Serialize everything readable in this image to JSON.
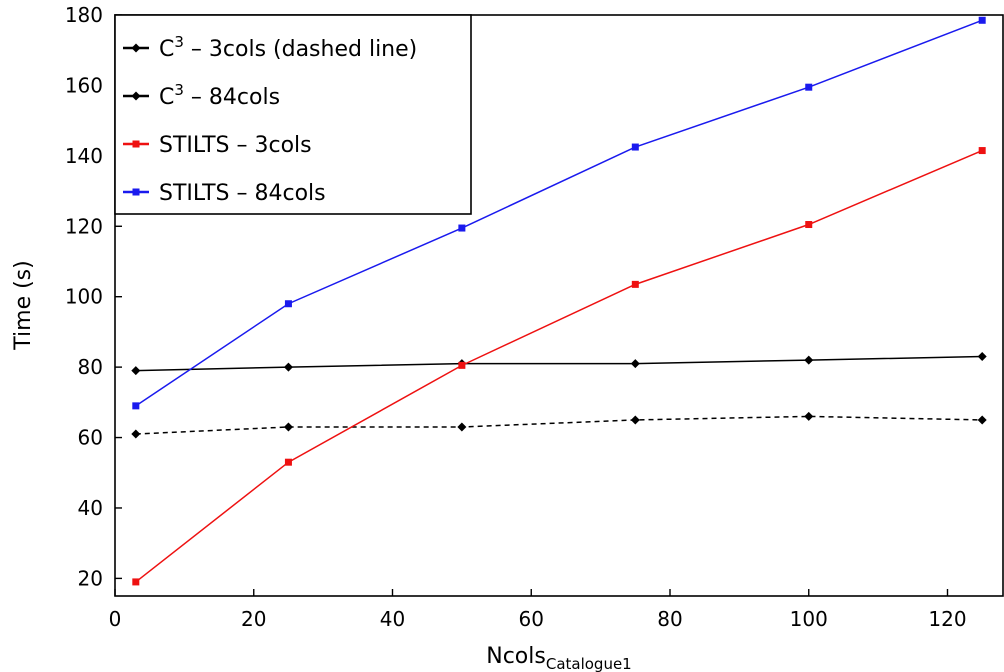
{
  "chart_data": {
    "type": "line",
    "xlabel": "Ncols",
    "xlabel_sub": "Catalogue1",
    "ylabel": "Time (s)",
    "xlim": [
      0,
      128
    ],
    "ylim": [
      15,
      180
    ],
    "xticks": [
      0,
      20,
      40,
      60,
      80,
      100,
      120
    ],
    "yticks": [
      20,
      40,
      60,
      80,
      100,
      120,
      140,
      160,
      180
    ],
    "grid": false,
    "legend_position": "top-left",
    "series": [
      {
        "name": "C³ – 3cols (dashed line)",
        "legend_base": "C",
        "legend_sup": "3",
        "legend_rest": " – 3cols (dashed line)",
        "color": "#000000",
        "dashed": true,
        "marker": "diamond",
        "x": [
          3,
          25,
          50,
          75,
          100,
          125
        ],
        "y": [
          61,
          63,
          63,
          65,
          66,
          65
        ]
      },
      {
        "name": "C³ – 84cols",
        "legend_base": "C",
        "legend_sup": "3",
        "legend_rest": " – 84cols",
        "color": "#000000",
        "dashed": false,
        "marker": "diamond",
        "x": [
          3,
          25,
          50,
          75,
          100,
          125
        ],
        "y": [
          79,
          80,
          81,
          81,
          82,
          83
        ]
      },
      {
        "name": "STILTS – 3cols",
        "legend_base": "STILTS – 3cols",
        "legend_sup": "",
        "legend_rest": "",
        "color": "#ee1111",
        "dashed": false,
        "marker": "square",
        "x": [
          3,
          25,
          50,
          75,
          100,
          125
        ],
        "y": [
          19,
          53,
          80.5,
          103.5,
          120.5,
          141.5
        ]
      },
      {
        "name": "STILTS – 84cols",
        "legend_base": "STILTS – 84cols",
        "legend_sup": "",
        "legend_rest": "",
        "color": "#1a1aee",
        "dashed": false,
        "marker": "square",
        "x": [
          3,
          25,
          50,
          75,
          100,
          125
        ],
        "y": [
          69,
          98,
          119.5,
          142.5,
          159.5,
          178.5
        ]
      }
    ]
  }
}
